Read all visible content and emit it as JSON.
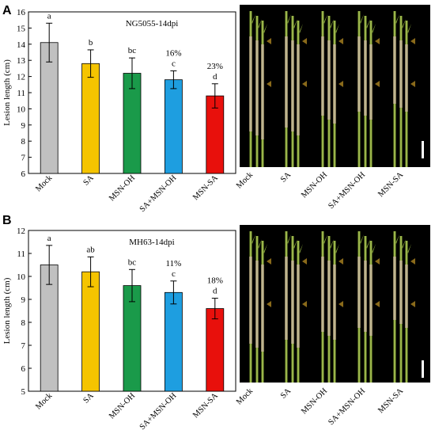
{
  "panels": [
    {
      "letter": "A",
      "chart_data": {
        "type": "bar",
        "title": "NG5055-14dpi",
        "ylabel": "Lesion length (cm)",
        "xlabel": "",
        "categories": [
          "Mock",
          "SA",
          "MSN-OH",
          "SA+MSN-OH",
          "MSN-SA"
        ],
        "values": [
          14.1,
          12.8,
          12.2,
          11.8,
          10.8
        ],
        "errors": [
          1.2,
          0.85,
          0.95,
          0.55,
          0.75
        ],
        "significance": [
          "a",
          "b",
          "bc",
          "c",
          "d"
        ],
        "reduction_labels": [
          "",
          "",
          "",
          "16%",
          "23%"
        ],
        "colors": [
          "#c0c0c0",
          "#f5c400",
          "#1a9a4a",
          "#1e9ee0",
          "#e8100c"
        ],
        "ylim": [
          6,
          16
        ],
        "yticks": [
          6,
          7,
          8,
          9,
          10,
          11,
          12,
          13,
          14,
          15,
          16
        ],
        "grid": false
      },
      "photo_labels": [
        "Mock",
        "SA",
        "MSN-OH",
        "SA+MSN-OH",
        "MSN-SA"
      ]
    },
    {
      "letter": "B",
      "chart_data": {
        "type": "bar",
        "title": "MH63-14dpi",
        "ylabel": "Lesion length (cm)",
        "xlabel": "",
        "categories": [
          "Mock",
          "SA",
          "MSN-OH",
          "SA+MSN-OH",
          "MSN-SA"
        ],
        "values": [
          10.5,
          10.2,
          9.6,
          9.3,
          8.6
        ],
        "errors": [
          0.85,
          0.65,
          0.7,
          0.5,
          0.45
        ],
        "significance": [
          "a",
          "ab",
          "bc",
          "c",
          "d"
        ],
        "reduction_labels": [
          "",
          "",
          "",
          "11%",
          "18%"
        ],
        "colors": [
          "#c0c0c0",
          "#f5c400",
          "#1a9a4a",
          "#1e9ee0",
          "#e8100c"
        ],
        "ylim": [
          5,
          12
        ],
        "yticks": [
          5,
          6,
          7,
          8,
          9,
          10,
          11,
          12
        ],
        "grid": false
      },
      "photo_labels": [
        "Mock",
        "SA",
        "MSN-OH",
        "SA+MSN-OH",
        "MSN-SA"
      ]
    }
  ]
}
